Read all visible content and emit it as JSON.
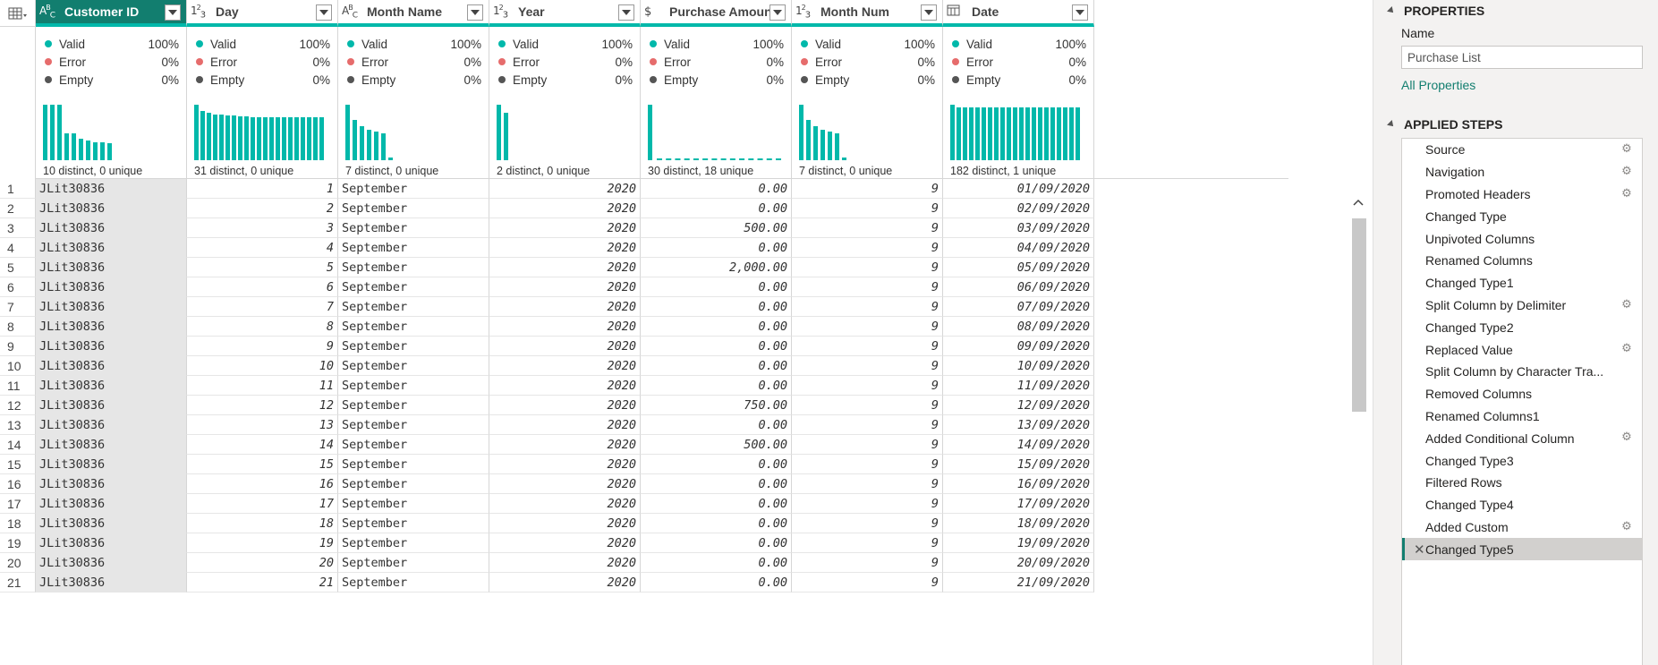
{
  "columns": [
    {
      "type_icon": "A B C",
      "name": "Customer ID",
      "valid": "100%",
      "error": "0%",
      "empty": "0%",
      "distinct": "10 distinct, 0 unique",
      "hist": [
        1.0,
        1.0,
        1.0,
        0.48,
        0.48,
        0.38,
        0.35,
        0.33,
        0.33,
        0.3
      ]
    },
    {
      "type_icon": "1 2 3",
      "name": "Day",
      "valid": "100%",
      "error": "0%",
      "empty": "0%",
      "distinct": "31 distinct, 0 unique",
      "hist": [
        1.0,
        0.88,
        0.85,
        0.83,
        0.82,
        0.81,
        0.8,
        0.79,
        0.79,
        0.78,
        0.78,
        0.78,
        0.77,
        0.77,
        0.77,
        0.77,
        0.77,
        0.77,
        0.77,
        0.77,
        0.77
      ]
    },
    {
      "type_icon": "A B C",
      "name": "Month Name",
      "valid": "100%",
      "error": "0%",
      "empty": "0%",
      "distinct": "7 distinct, 0 unique",
      "hist": [
        1.0,
        0.72,
        0.62,
        0.55,
        0.52,
        0.48,
        0.05
      ]
    },
    {
      "type_icon": "1 2 3",
      "name": "Year",
      "valid": "100%",
      "error": "0%",
      "empty": "0%",
      "distinct": "2 distinct, 0 unique",
      "hist": [
        1.0,
        0.85
      ]
    },
    {
      "type_icon": "$",
      "name": "Purchase Amount",
      "valid": "100%",
      "error": "0%",
      "empty": "0%",
      "distinct": "30 distinct, 18 unique",
      "hist": [
        1.0
      ]
    },
    {
      "type_icon": "1 2 3",
      "name": "Month Num",
      "valid": "100%",
      "error": "0%",
      "empty": "0%",
      "distinct": "7 distinct, 0 unique",
      "hist": [
        1.0,
        0.72,
        0.62,
        0.55,
        0.52,
        0.48,
        0.05
      ]
    },
    {
      "type_icon": "cal",
      "name": "Date",
      "valid": "100%",
      "error": "0%",
      "empty": "0%",
      "distinct": "182 distinct, 1 unique",
      "hist": [
        1.0,
        0.95,
        0.95,
        0.95,
        0.95,
        0.95,
        0.95,
        0.95,
        0.95,
        0.95,
        0.95,
        0.95,
        0.95,
        0.95,
        0.95,
        0.95,
        0.95,
        0.95,
        0.95,
        0.95,
        0.95
      ]
    }
  ],
  "quality_labels": {
    "valid": "Valid",
    "error": "Error",
    "empty": "Empty"
  },
  "rows": [
    [
      "1",
      "JLit30836",
      "1",
      "September",
      "2020",
      "0.00",
      "9",
      "01/09/2020"
    ],
    [
      "2",
      "JLit30836",
      "2",
      "September",
      "2020",
      "0.00",
      "9",
      "02/09/2020"
    ],
    [
      "3",
      "JLit30836",
      "3",
      "September",
      "2020",
      "500.00",
      "9",
      "03/09/2020"
    ],
    [
      "4",
      "JLit30836",
      "4",
      "September",
      "2020",
      "0.00",
      "9",
      "04/09/2020"
    ],
    [
      "5",
      "JLit30836",
      "5",
      "September",
      "2020",
      "2,000.00",
      "9",
      "05/09/2020"
    ],
    [
      "6",
      "JLit30836",
      "6",
      "September",
      "2020",
      "0.00",
      "9",
      "06/09/2020"
    ],
    [
      "7",
      "JLit30836",
      "7",
      "September",
      "2020",
      "0.00",
      "9",
      "07/09/2020"
    ],
    [
      "8",
      "JLit30836",
      "8",
      "September",
      "2020",
      "0.00",
      "9",
      "08/09/2020"
    ],
    [
      "9",
      "JLit30836",
      "9",
      "September",
      "2020",
      "0.00",
      "9",
      "09/09/2020"
    ],
    [
      "10",
      "JLit30836",
      "10",
      "September",
      "2020",
      "0.00",
      "9",
      "10/09/2020"
    ],
    [
      "11",
      "JLit30836",
      "11",
      "September",
      "2020",
      "0.00",
      "9",
      "11/09/2020"
    ],
    [
      "12",
      "JLit30836",
      "12",
      "September",
      "2020",
      "750.00",
      "9",
      "12/09/2020"
    ],
    [
      "13",
      "JLit30836",
      "13",
      "September",
      "2020",
      "0.00",
      "9",
      "13/09/2020"
    ],
    [
      "14",
      "JLit30836",
      "14",
      "September",
      "2020",
      "500.00",
      "9",
      "14/09/2020"
    ],
    [
      "15",
      "JLit30836",
      "15",
      "September",
      "2020",
      "0.00",
      "9",
      "15/09/2020"
    ],
    [
      "16",
      "JLit30836",
      "16",
      "September",
      "2020",
      "0.00",
      "9",
      "16/09/2020"
    ],
    [
      "17",
      "JLit30836",
      "17",
      "September",
      "2020",
      "0.00",
      "9",
      "17/09/2020"
    ],
    [
      "18",
      "JLit30836",
      "18",
      "September",
      "2020",
      "0.00",
      "9",
      "18/09/2020"
    ],
    [
      "19",
      "JLit30836",
      "19",
      "September",
      "2020",
      "0.00",
      "9",
      "19/09/2020"
    ],
    [
      "20",
      "JLit30836",
      "20",
      "September",
      "2020",
      "0.00",
      "9",
      "20/09/2020"
    ],
    [
      "21",
      "JLit30836",
      "21",
      "September",
      "2020",
      "0.00",
      "9",
      "21/09/2020"
    ]
  ],
  "panel": {
    "properties_title": "PROPERTIES",
    "name_label": "Name",
    "name_value": "Purchase List",
    "all_properties": "All Properties",
    "steps_title": "APPLIED STEPS",
    "steps": [
      {
        "label": "Source",
        "gear": true
      },
      {
        "label": "Navigation",
        "gear": true
      },
      {
        "label": "Promoted Headers",
        "gear": true
      },
      {
        "label": "Changed Type",
        "gear": false
      },
      {
        "label": "Unpivoted Columns",
        "gear": false
      },
      {
        "label": "Renamed Columns",
        "gear": false
      },
      {
        "label": "Changed Type1",
        "gear": false
      },
      {
        "label": "Split Column by Delimiter",
        "gear": true
      },
      {
        "label": "Changed Type2",
        "gear": false
      },
      {
        "label": "Replaced Value",
        "gear": true
      },
      {
        "label": "Split Column by Character Tra...",
        "gear": false
      },
      {
        "label": "Removed Columns",
        "gear": false
      },
      {
        "label": "Renamed Columns1",
        "gear": false
      },
      {
        "label": "Added Conditional Column",
        "gear": true
      },
      {
        "label": "Changed Type3",
        "gear": false
      },
      {
        "label": "Filtered Rows",
        "gear": false
      },
      {
        "label": "Changed Type4",
        "gear": false
      },
      {
        "label": "Added Custom",
        "gear": true
      },
      {
        "label": "Changed Type5",
        "gear": false,
        "active": true
      }
    ]
  },
  "colors": {
    "accent": "#01b8aa",
    "selected_header": "#127e6f",
    "error_dot": "#e66c6c",
    "empty_dot": "#555555"
  }
}
